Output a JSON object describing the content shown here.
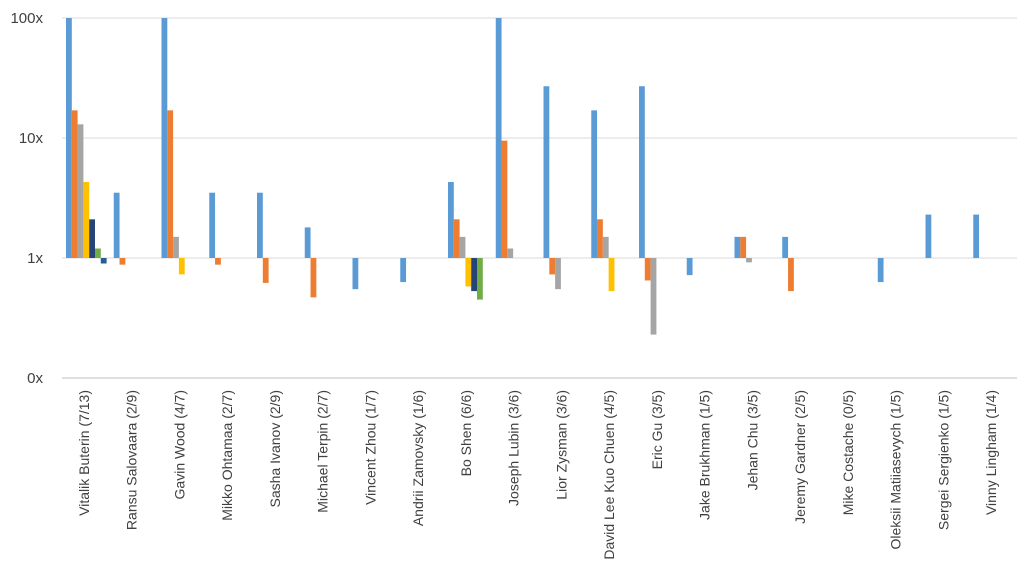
{
  "chart_data": {
    "type": "bar",
    "y_scale": "log",
    "y_axis_baseline": 1,
    "ylim": [
      0.1,
      100
    ],
    "y_ticks": [
      {
        "value": 100,
        "label": "100x"
      },
      {
        "value": 10,
        "label": "10x"
      },
      {
        "value": 1,
        "label": "1x"
      },
      {
        "value": 0.1,
        "label": "0x"
      }
    ],
    "grid": true,
    "legend": "none",
    "title": "",
    "xlabel": "",
    "ylabel": "",
    "categories": [
      "Vitalik Buterin (7/13)",
      "Ransu Salovaara (2/9)",
      "Gavin Wood (4/7)",
      "Mikko Ohtamaa (2/7)",
      "Sasha Ivanov (2/9)",
      "Michael Terpin (2/7)",
      "Vincent Zhou (1/7)",
      "Andrii Zamovsky (1/6)",
      "Bo Shen (6/6)",
      "Joseph Lubin (3/6)",
      "Lior Zysman (3/6)",
      "David Lee Kuo Chuen (4/5)",
      "Eric Gu (3/5)",
      "Jake Brukhman (1/5)",
      "Jehan Chu (3/5)",
      "Jeremy Gardner (2/5)",
      "Mike Costache (0/5)",
      "Oleksii Matiiasevych (1/5)",
      "Sergei Sergienko (1/5)",
      "Vinny Lingham (1/4)"
    ],
    "series": [
      {
        "color": "#5b9bd5",
        "values": [
          100,
          3.5,
          100,
          3.5,
          3.5,
          1.8,
          0.55,
          0.63,
          4.3,
          100,
          27,
          17,
          27,
          0.72,
          1.5,
          1.5,
          null,
          0.63,
          2.3,
          2.3
        ]
      },
      {
        "color": "#ed7d31",
        "values": [
          17,
          0.88,
          17,
          0.88,
          0.62,
          0.47,
          null,
          null,
          2.1,
          9.5,
          0.73,
          2.1,
          0.65,
          null,
          1.5,
          0.53,
          null,
          null,
          null,
          null
        ]
      },
      {
        "color": "#a5a5a5",
        "values": [
          13,
          null,
          1.5,
          null,
          null,
          null,
          null,
          null,
          1.5,
          1.2,
          0.55,
          1.5,
          0.23,
          null,
          0.92,
          null,
          null,
          null,
          null,
          null
        ]
      },
      {
        "color": "#ffc000",
        "values": [
          4.3,
          null,
          0.73,
          null,
          null,
          null,
          null,
          null,
          0.58,
          null,
          null,
          0.53,
          null,
          null,
          null,
          null,
          null,
          null,
          null,
          null
        ]
      },
      {
        "color": "#264478",
        "values": [
          2.1,
          null,
          null,
          null,
          null,
          null,
          null,
          null,
          0.53,
          null,
          null,
          null,
          null,
          null,
          null,
          null,
          null,
          null,
          null,
          null
        ]
      },
      {
        "color": "#70ad47",
        "values": [
          1.2,
          null,
          null,
          null,
          null,
          null,
          null,
          null,
          0.45,
          null,
          null,
          null,
          null,
          null,
          null,
          null,
          null,
          null,
          null,
          null
        ]
      },
      {
        "color": "#255e91",
        "values": [
          0.9,
          null,
          null,
          null,
          null,
          null,
          null,
          null,
          null,
          null,
          null,
          null,
          null,
          null,
          null,
          null,
          null,
          null,
          null,
          null
        ]
      }
    ]
  }
}
